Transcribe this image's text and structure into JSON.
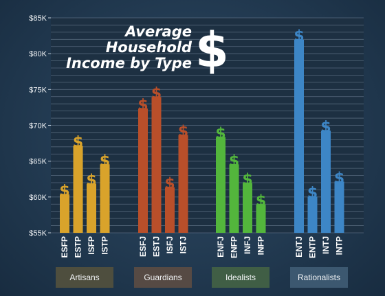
{
  "chart_data": {
    "type": "bar",
    "title_lines": [
      "Average",
      "Household",
      "Income by Type"
    ],
    "title_symbol": "$",
    "bar_symbol": "$",
    "ylim": [
      55000,
      85000
    ],
    "yticks": [
      {
        "value": 55000,
        "label": "$55K"
      },
      {
        "value": 60000,
        "label": "$60K"
      },
      {
        "value": 65000,
        "label": "$65K"
      },
      {
        "value": 70000,
        "label": "$70K"
      },
      {
        "value": 75000,
        "label": "$75K"
      },
      {
        "value": 80000,
        "label": "$80K"
      },
      {
        "value": 85000,
        "label": "$85K"
      }
    ],
    "grid": true,
    "groups": [
      {
        "name": "Artisans",
        "color": "#d9a32b",
        "label_bg": "#4e4e3e",
        "bars": [
          {
            "category": "ESFP",
            "value": 61700
          },
          {
            "category": "ESTP",
            "value": 68500
          },
          {
            "category": "ISFP",
            "value": 63200
          },
          {
            "category": "ISTP",
            "value": 65900
          }
        ]
      },
      {
        "name": "Guardians",
        "color": "#b94f2a",
        "label_bg": "#564a44",
        "bars": [
          {
            "category": "ESFJ",
            "value": 73700
          },
          {
            "category": "ESTJ",
            "value": 75300
          },
          {
            "category": "ISFJ",
            "value": 62700
          },
          {
            "category": "ISTJ",
            "value": 70000
          }
        ]
      },
      {
        "name": "Idealists",
        "color": "#53b63c",
        "label_bg": "#405e45",
        "bars": [
          {
            "category": "ENFJ",
            "value": 69700
          },
          {
            "category": "ENFP",
            "value": 65900
          },
          {
            "category": "INFJ",
            "value": 63300
          },
          {
            "category": "INFP",
            "value": 60300
          }
        ]
      },
      {
        "name": "Rationalists",
        "color": "#3d86c6",
        "label_bg": "#3c5870",
        "bars": [
          {
            "category": "ENTJ",
            "value": 83300
          },
          {
            "category": "ENTP",
            "value": 61400
          },
          {
            "category": "INTJ",
            "value": 70600
          },
          {
            "category": "INTP",
            "value": 63500
          }
        ]
      }
    ]
  }
}
